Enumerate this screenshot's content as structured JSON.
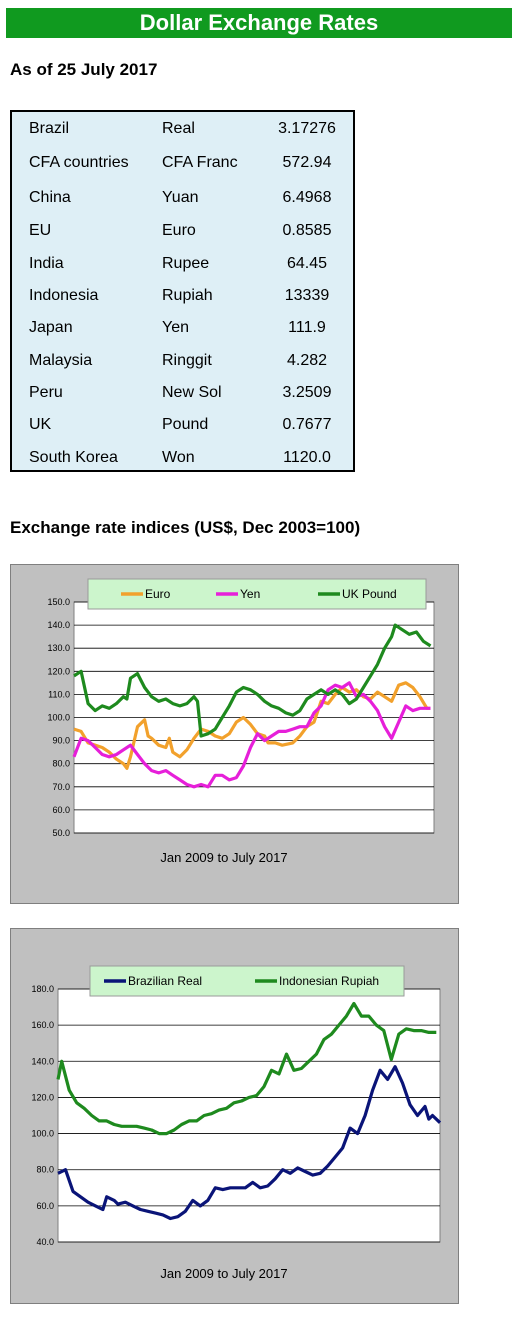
{
  "header": {
    "title": "Dollar Exchange Rates",
    "as_of": "As of 25 July 2017"
  },
  "rates_table": [
    {
      "country": "Brazil",
      "currency": "Real",
      "rate": "3.17276"
    },
    {
      "country": "CFA countries",
      "currency": "CFA Franc",
      "rate": "572.94"
    },
    {
      "country": "China",
      "currency": "Yuan",
      "rate": "6.4968"
    },
    {
      "country": "EU",
      "currency": "Euro",
      "rate": "0.8585"
    },
    {
      "country": "India",
      "currency": "Rupee",
      "rate": "64.45"
    },
    {
      "country": "Indonesia",
      "currency": "Rupiah",
      "rate": "13339"
    },
    {
      "country": "Japan",
      "currency": "Yen",
      "rate": "111.9"
    },
    {
      "country": "Malaysia",
      "currency": "Ringgit",
      "rate": "4.282"
    },
    {
      "country": "Peru",
      "currency": "New Sol",
      "rate": "3.2509"
    },
    {
      "country": "UK",
      "currency": "Pound",
      "rate": "0.7677"
    },
    {
      "country": "South Korea",
      "currency": "Won",
      "rate": "1120.0"
    }
  ],
  "indices_title": "Exchange rate indices (US$, Dec 2003=100)",
  "chart_data": [
    {
      "type": "line",
      "xlabel": "Jan 2009 to July 2017",
      "ylabel": "",
      "ylim": [
        50,
        150
      ],
      "yticks": [
        "50.0",
        "60.0",
        "70.0",
        "80.0",
        "90.0",
        "100.0",
        "110.0",
        "120.0",
        "130.0",
        "140.0",
        "150.0"
      ],
      "grid": true,
      "legend_position": "top",
      "x_range": [
        0,
        102
      ],
      "series": [
        {
          "name": "Euro",
          "color": "#f2a12c",
          "points": [
            [
              0,
              95
            ],
            [
              2,
              94
            ],
            [
              4,
              89
            ],
            [
              6,
              88
            ],
            [
              8,
              87
            ],
            [
              10,
              85
            ],
            [
              12,
              82
            ],
            [
              14,
              80
            ],
            [
              15,
              78
            ],
            [
              16,
              83
            ],
            [
              18,
              96
            ],
            [
              20,
              99
            ],
            [
              21,
              92
            ],
            [
              22,
              91
            ],
            [
              24,
              88
            ],
            [
              26,
              87
            ],
            [
              27,
              91
            ],
            [
              28,
              85
            ],
            [
              30,
              83
            ],
            [
              32,
              86
            ],
            [
              34,
              91
            ],
            [
              36,
              95
            ],
            [
              38,
              94
            ],
            [
              40,
              92
            ],
            [
              42,
              91
            ],
            [
              44,
              93
            ],
            [
              46,
              98
            ],
            [
              48,
              100
            ],
            [
              50,
              97
            ],
            [
              52,
              93
            ],
            [
              54,
              92
            ],
            [
              55,
              89
            ],
            [
              57,
              89
            ],
            [
              59,
              88
            ],
            [
              62,
              89
            ],
            [
              64,
              92
            ],
            [
              66,
              96
            ],
            [
              68,
              98
            ],
            [
              70,
              107
            ],
            [
              72,
              106
            ],
            [
              74,
              110
            ],
            [
              76,
              113
            ],
            [
              78,
              111
            ],
            [
              80,
              112
            ],
            [
              82,
              109
            ],
            [
              84,
              108
            ],
            [
              86,
              111
            ],
            [
              88,
              109
            ],
            [
              90,
              107
            ],
            [
              92,
              114
            ],
            [
              94,
              115
            ],
            [
              96,
              113
            ],
            [
              98,
              109
            ],
            [
              100,
              104
            ],
            [
              101,
              104
            ]
          ]
        },
        {
          "name": "Yen",
          "color": "#e61fd9",
          "points": [
            [
              0,
              83
            ],
            [
              2,
              91
            ],
            [
              4,
              90
            ],
            [
              6,
              87
            ],
            [
              8,
              84
            ],
            [
              10,
              83
            ],
            [
              12,
              84
            ],
            [
              14,
              86
            ],
            [
              16,
              88
            ],
            [
              18,
              84
            ],
            [
              20,
              80
            ],
            [
              22,
              77
            ],
            [
              24,
              76
            ],
            [
              26,
              77
            ],
            [
              28,
              75
            ],
            [
              30,
              73
            ],
            [
              32,
              71
            ],
            [
              34,
              70
            ],
            [
              36,
              71
            ],
            [
              38,
              70
            ],
            [
              40,
              75
            ],
            [
              42,
              75
            ],
            [
              44,
              73
            ],
            [
              46,
              74
            ],
            [
              48,
              79
            ],
            [
              50,
              87
            ],
            [
              52,
              93
            ],
            [
              54,
              90
            ],
            [
              56,
              92
            ],
            [
              58,
              94
            ],
            [
              60,
              94
            ],
            [
              62,
              95
            ],
            [
              64,
              96
            ],
            [
              66,
              96
            ],
            [
              68,
              102
            ],
            [
              70,
              105
            ],
            [
              72,
              112
            ],
            [
              74,
              114
            ],
            [
              76,
              113
            ],
            [
              78,
              115
            ],
            [
              80,
              109
            ],
            [
              82,
              110
            ],
            [
              84,
              107
            ],
            [
              86,
              103
            ],
            [
              88,
              96
            ],
            [
              90,
              91
            ],
            [
              92,
              98
            ],
            [
              94,
              105
            ],
            [
              96,
              103
            ],
            [
              98,
              104
            ],
            [
              100,
              104
            ],
            [
              101,
              104
            ]
          ]
        },
        {
          "name": "UK Pound",
          "color": "#1e8a1e",
          "points": [
            [
              0,
              118
            ],
            [
              2,
              120
            ],
            [
              4,
              106
            ],
            [
              6,
              103
            ],
            [
              8,
              105
            ],
            [
              10,
              104
            ],
            [
              12,
              106
            ],
            [
              14,
              109
            ],
            [
              15,
              108
            ],
            [
              16,
              117
            ],
            [
              18,
              119
            ],
            [
              20,
              113
            ],
            [
              22,
              109
            ],
            [
              24,
              107
            ],
            [
              26,
              108
            ],
            [
              28,
              106
            ],
            [
              30,
              105
            ],
            [
              32,
              106
            ],
            [
              34,
              109
            ],
            [
              35,
              107
            ],
            [
              36,
              92
            ],
            [
              38,
              93
            ],
            [
              40,
              95
            ],
            [
              42,
              100
            ],
            [
              44,
              105
            ],
            [
              46,
              111
            ],
            [
              48,
              113
            ],
            [
              50,
              112
            ],
            [
              52,
              110
            ],
            [
              54,
              107
            ],
            [
              56,
              105
            ],
            [
              58,
              104
            ],
            [
              60,
              102
            ],
            [
              62,
              101
            ],
            [
              64,
              103
            ],
            [
              66,
              108
            ],
            [
              68,
              110
            ],
            [
              70,
              112
            ],
            [
              72,
              110
            ],
            [
              74,
              112
            ],
            [
              76,
              110
            ],
            [
              78,
              106
            ],
            [
              80,
              108
            ],
            [
              82,
              113
            ],
            [
              84,
              118
            ],
            [
              86,
              123
            ],
            [
              88,
              130
            ],
            [
              90,
              135
            ],
            [
              91,
              140
            ],
            [
              93,
              138
            ],
            [
              95,
              136
            ],
            [
              97,
              137
            ],
            [
              99,
              133
            ],
            [
              101,
              131
            ]
          ]
        }
      ]
    },
    {
      "type": "line",
      "xlabel": "Jan 2009 to July 2017",
      "ylabel": "",
      "ylim": [
        40,
        180
      ],
      "yticks": [
        "40.0",
        "60.0",
        "80.0",
        "100.0",
        "120.0",
        "140.0",
        "160.0",
        "180.0"
      ],
      "grid": true,
      "legend_position": "top",
      "x_range": [
        0,
        102
      ],
      "series": [
        {
          "name": "Brazilian Real",
          "color": "#0a1478",
          "points": [
            [
              0,
              78
            ],
            [
              2,
              80
            ],
            [
              4,
              68
            ],
            [
              6,
              65
            ],
            [
              8,
              62
            ],
            [
              10,
              60
            ],
            [
              12,
              58
            ],
            [
              13,
              65
            ],
            [
              15,
              63
            ],
            [
              16,
              61
            ],
            [
              18,
              62
            ],
            [
              20,
              60
            ],
            [
              22,
              58
            ],
            [
              24,
              57
            ],
            [
              26,
              56
            ],
            [
              28,
              55
            ],
            [
              30,
              53
            ],
            [
              32,
              54
            ],
            [
              34,
              57
            ],
            [
              36,
              63
            ],
            [
              38,
              60
            ],
            [
              40,
              63
            ],
            [
              42,
              70
            ],
            [
              44,
              69
            ],
            [
              46,
              70
            ],
            [
              48,
              70
            ],
            [
              50,
              70
            ],
            [
              52,
              73
            ],
            [
              54,
              70
            ],
            [
              56,
              71
            ],
            [
              58,
              75
            ],
            [
              60,
              80
            ],
            [
              62,
              78
            ],
            [
              64,
              81
            ],
            [
              66,
              79
            ],
            [
              68,
              77
            ],
            [
              70,
              78
            ],
            [
              72,
              82
            ],
            [
              74,
              87
            ],
            [
              76,
              92
            ],
            [
              78,
              103
            ],
            [
              80,
              100
            ],
            [
              82,
              110
            ],
            [
              84,
              124
            ],
            [
              86,
              135
            ],
            [
              88,
              130
            ],
            [
              90,
              137
            ],
            [
              92,
              128
            ],
            [
              94,
              116
            ],
            [
              96,
              110
            ],
            [
              98,
              115
            ],
            [
              99,
              108
            ],
            [
              100,
              110
            ],
            [
              102,
              106
            ]
          ]
        },
        {
          "name": "Indonesian Rupiah",
          "color": "#1e8a1e",
          "points": [
            [
              0,
              130
            ],
            [
              1,
              140
            ],
            [
              3,
              124
            ],
            [
              5,
              117
            ],
            [
              7,
              114
            ],
            [
              9,
              110
            ],
            [
              11,
              107
            ],
            [
              13,
              107
            ],
            [
              15,
              105
            ],
            [
              17,
              104
            ],
            [
              19,
              104
            ],
            [
              21,
              104
            ],
            [
              23,
              103
            ],
            [
              25,
              102
            ],
            [
              27,
              100
            ],
            [
              29,
              100
            ],
            [
              31,
              102
            ],
            [
              33,
              105
            ],
            [
              35,
              107
            ],
            [
              37,
              107
            ],
            [
              39,
              110
            ],
            [
              41,
              111
            ],
            [
              43,
              113
            ],
            [
              45,
              114
            ],
            [
              47,
              117
            ],
            [
              49,
              118
            ],
            [
              51,
              120
            ],
            [
              53,
              121
            ],
            [
              55,
              126
            ],
            [
              57,
              135
            ],
            [
              59,
              133
            ],
            [
              61,
              144
            ],
            [
              63,
              135
            ],
            [
              65,
              136
            ],
            [
              67,
              140
            ],
            [
              69,
              144
            ],
            [
              71,
              152
            ],
            [
              73,
              155
            ],
            [
              75,
              160
            ],
            [
              77,
              165
            ],
            [
              79,
              172
            ],
            [
              81,
              165
            ],
            [
              83,
              165
            ],
            [
              85,
              160
            ],
            [
              87,
              157
            ],
            [
              89,
              141
            ],
            [
              91,
              155
            ],
            [
              93,
              158
            ],
            [
              95,
              157
            ],
            [
              97,
              157
            ],
            [
              99,
              156
            ],
            [
              101,
              156
            ]
          ]
        }
      ]
    }
  ]
}
